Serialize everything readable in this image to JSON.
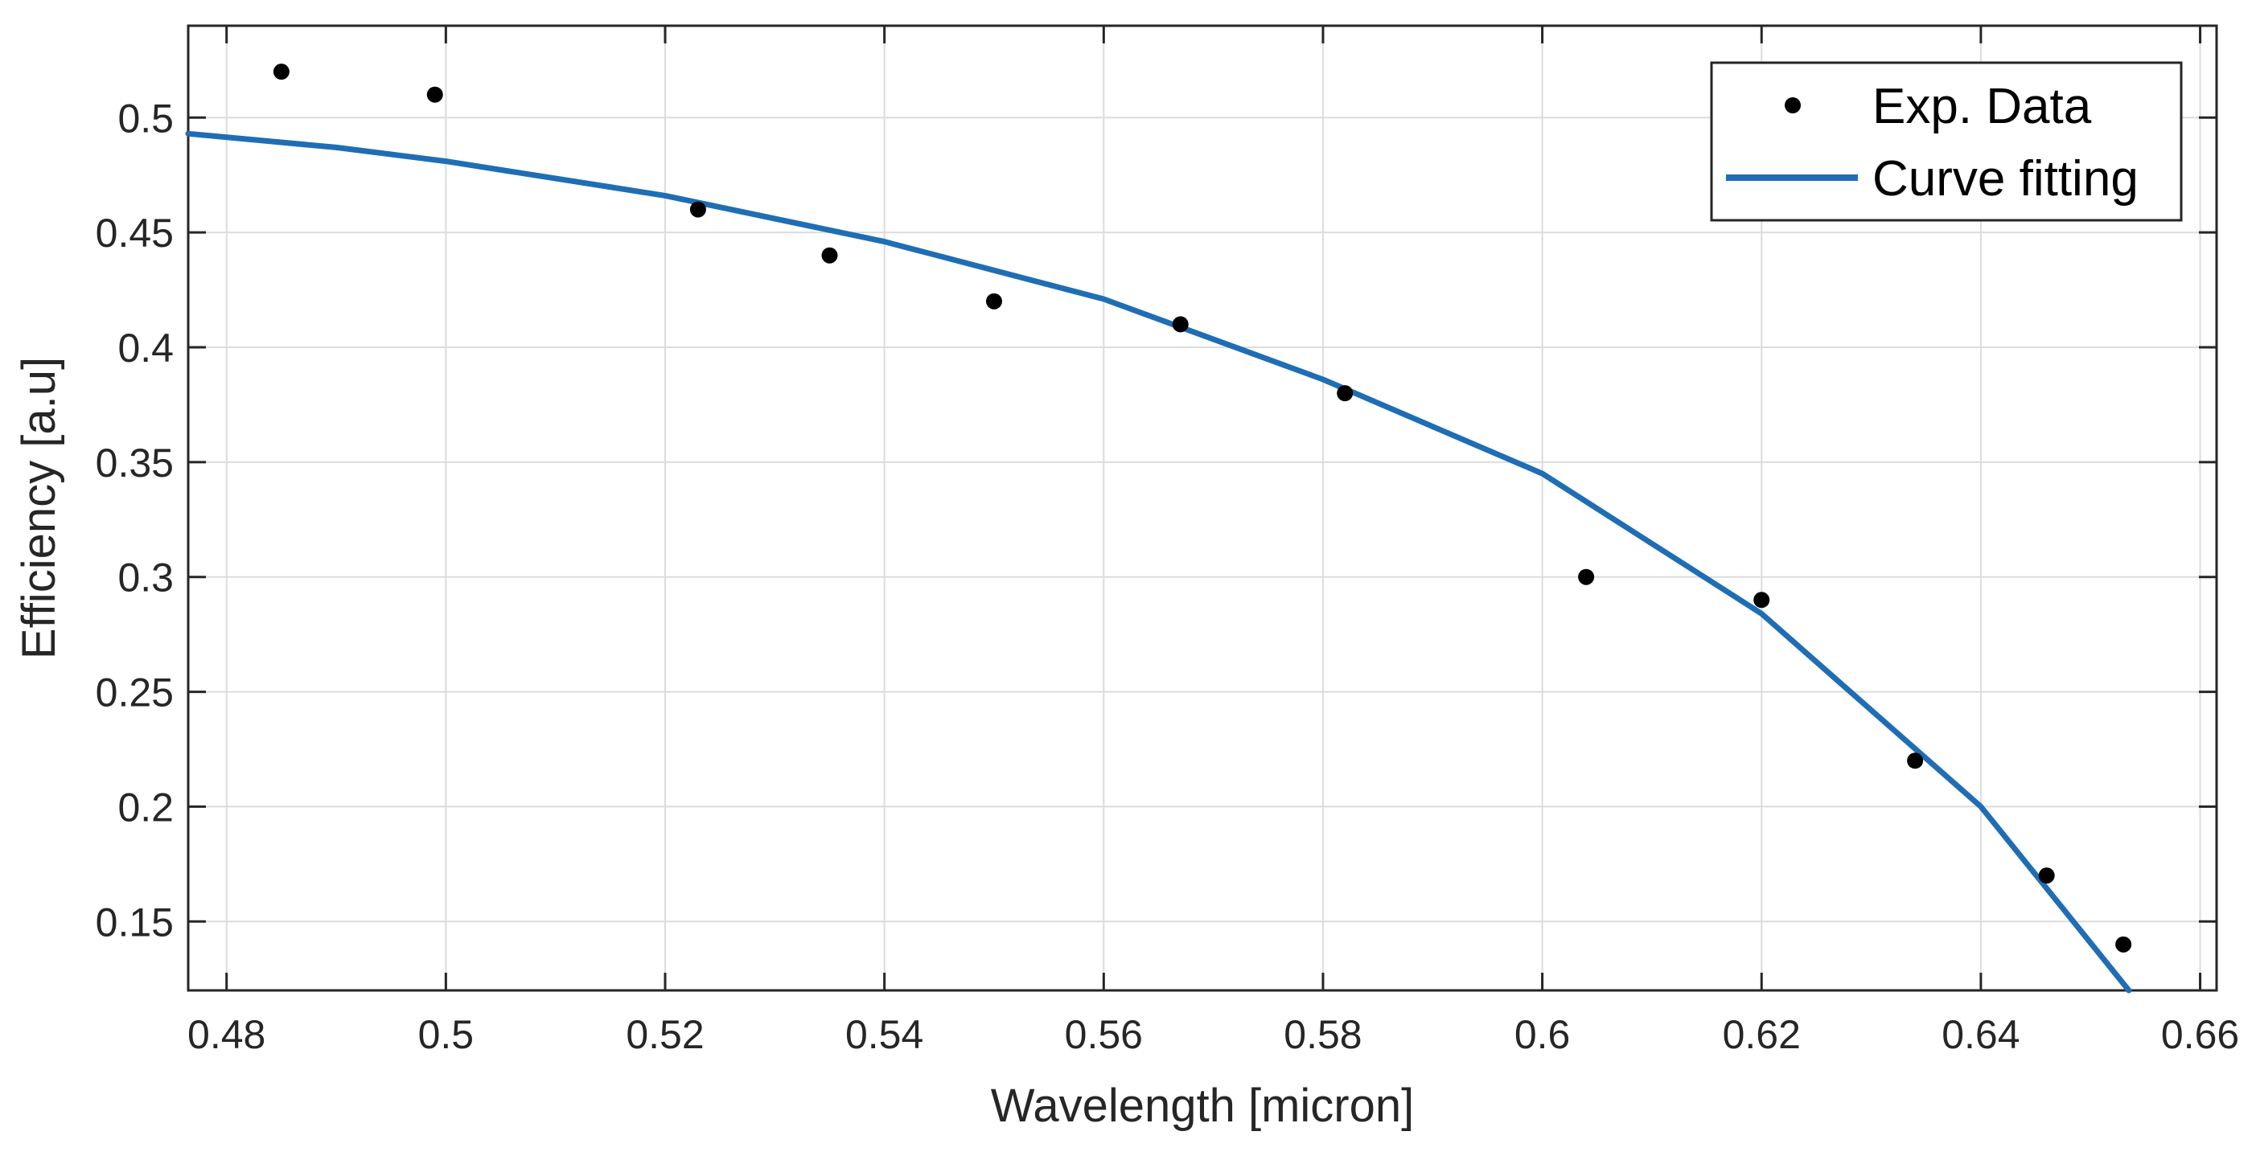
{
  "chart_data": {
    "type": "scatter",
    "title": "",
    "xlabel": "Wavelength [micron]",
    "ylabel": "Efficiency [a.u]",
    "xlim": [
      0.4765,
      0.6615
    ],
    "ylim": [
      0.12,
      0.54
    ],
    "grid": true,
    "legend_position": "top-right",
    "x_ticks": [
      0.48,
      0.5,
      0.52,
      0.54,
      0.56,
      0.58,
      0.6,
      0.62,
      0.64,
      0.66
    ],
    "x_tick_labels": [
      "0.48",
      "0.5",
      "0.52",
      "0.54",
      "0.56",
      "0.58",
      "0.6",
      "0.62",
      "0.64",
      "0.66"
    ],
    "y_ticks": [
      0.15,
      0.2,
      0.25,
      0.3,
      0.35,
      0.4,
      0.45,
      0.5
    ],
    "y_tick_labels": [
      "0.15",
      "0.2",
      "0.25",
      "0.3",
      "0.35",
      "0.4",
      "0.45",
      "0.5"
    ],
    "series": [
      {
        "name": "Exp. Data",
        "kind": "scatter",
        "color": "#000000",
        "x": [
          0.485,
          0.499,
          0.523,
          0.535,
          0.55,
          0.567,
          0.582,
          0.604,
          0.62,
          0.634,
          0.646,
          0.653
        ],
        "y": [
          0.52,
          0.51,
          0.46,
          0.44,
          0.42,
          0.41,
          0.38,
          0.3,
          0.29,
          0.22,
          0.17,
          0.14
        ]
      },
      {
        "name": "Curve fitting",
        "kind": "line",
        "color": "#1f6eb5",
        "x": [
          0.4765,
          0.49,
          0.5,
          0.52,
          0.54,
          0.56,
          0.58,
          0.6,
          0.62,
          0.64,
          0.6535
        ],
        "y": [
          0.493,
          0.487,
          0.481,
          0.466,
          0.446,
          0.421,
          0.386,
          0.345,
          0.284,
          0.2,
          0.12
        ]
      }
    ]
  }
}
